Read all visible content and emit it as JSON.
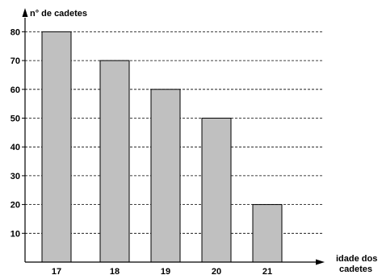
{
  "chart_data": {
    "type": "bar",
    "title": "",
    "ylabel": "n° de cadetes",
    "xlabel_line1": "idade dos",
    "xlabel_line2": "cadetes",
    "categories": [
      "17",
      "18",
      "19",
      "20",
      "21"
    ],
    "values": [
      80,
      70,
      60,
      50,
      20
    ],
    "ylim": [
      0,
      85
    ],
    "yticks": [
      10,
      20,
      30,
      40,
      50,
      60,
      70,
      80
    ],
    "grid": true,
    "grid_style": "dashed",
    "bar_color": "#c0c0c0",
    "bar_edge_color": "#000000",
    "legend": "none"
  }
}
